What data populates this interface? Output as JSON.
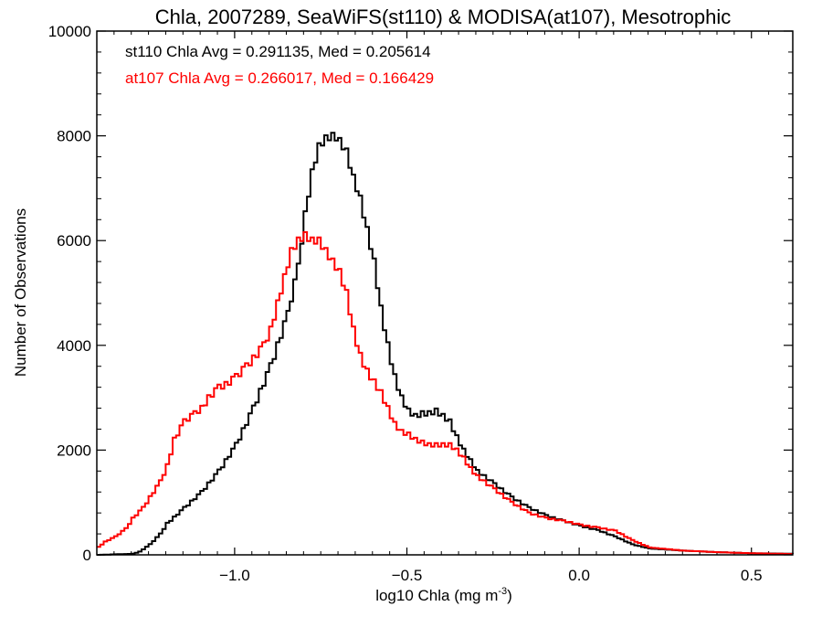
{
  "chart_data": {
    "type": "line",
    "title": "Chla, 2007289, SeaWiFS(st110) & MODISA(at107), Mesotrophic",
    "xlabel_base": "log10 Chla (mg m",
    "xlabel_sup": "-3",
    "xlabel_tail": ")",
    "ylabel": "Number of Observations",
    "xlim": [
      -1.4,
      0.62
    ],
    "ylim": [
      0,
      10000
    ],
    "x_ticks": [
      -1.0,
      -0.5,
      0.0,
      0.5
    ],
    "x_tick_labels": [
      "−1.0",
      "−0.5",
      "0.0",
      "0.5"
    ],
    "y_ticks": [
      0,
      2000,
      4000,
      6000,
      8000,
      10000
    ],
    "y_tick_labels": [
      "0",
      "2000",
      "4000",
      "6000",
      "8000",
      "10000"
    ],
    "grid": false,
    "annotations": [
      {
        "text": "st110 Chla Avg = 0.291135, Med = 0.205614",
        "color": "#000000"
      },
      {
        "text": "at107 Chla Avg = 0.266017, Med = 0.166429",
        "color": "#ff0000"
      }
    ],
    "series": [
      {
        "color": "#000000",
        "style": "step",
        "x": [
          -1.4,
          -1.3,
          -1.28,
          -1.25,
          -1.22,
          -1.2,
          -1.15,
          -1.1,
          -1.05,
          -1.0,
          -0.95,
          -0.9,
          -0.85,
          -0.82,
          -0.8,
          -0.78,
          -0.76,
          -0.74,
          -0.72,
          -0.71,
          -0.7,
          -0.68,
          -0.66,
          -0.64,
          -0.62,
          -0.6,
          -0.58,
          -0.56,
          -0.54,
          -0.52,
          -0.5,
          -0.48,
          -0.46,
          -0.44,
          -0.42,
          -0.4,
          -0.38,
          -0.36,
          -0.34,
          -0.32,
          -0.3,
          -0.25,
          -0.2,
          -0.15,
          -0.1,
          -0.05,
          0.0,
          0.05,
          0.1,
          0.15,
          0.2,
          0.3,
          0.4,
          0.5,
          0.62
        ],
        "y": [
          0,
          20,
          60,
          200,
          400,
          600,
          900,
          1200,
          1600,
          2100,
          2800,
          3600,
          4600,
          5500,
          6500,
          7300,
          7800,
          7950,
          8000,
          7850,
          7900,
          7700,
          7200,
          6800,
          6200,
          5600,
          4700,
          4000,
          3400,
          3000,
          2750,
          2650,
          2700,
          2700,
          2750,
          2650,
          2550,
          2250,
          2000,
          1800,
          1600,
          1350,
          1100,
          900,
          750,
          650,
          550,
          470,
          350,
          200,
          120,
          80,
          50,
          30,
          20
        ]
      },
      {
        "color": "#ff0000",
        "style": "step",
        "x": [
          -1.4,
          -1.38,
          -1.35,
          -1.32,
          -1.3,
          -1.27,
          -1.25,
          -1.22,
          -1.2,
          -1.18,
          -1.15,
          -1.12,
          -1.1,
          -1.08,
          -1.05,
          -1.03,
          -1.0,
          -0.97,
          -0.95,
          -0.92,
          -0.9,
          -0.88,
          -0.86,
          -0.84,
          -0.82,
          -0.8,
          -0.78,
          -0.76,
          -0.74,
          -0.72,
          -0.7,
          -0.68,
          -0.66,
          -0.64,
          -0.62,
          -0.6,
          -0.58,
          -0.56,
          -0.54,
          -0.52,
          -0.5,
          -0.48,
          -0.46,
          -0.44,
          -0.42,
          -0.4,
          -0.38,
          -0.36,
          -0.34,
          -0.32,
          -0.3,
          -0.25,
          -0.2,
          -0.15,
          -0.1,
          -0.05,
          0.0,
          0.05,
          0.1,
          0.15,
          0.2,
          0.3,
          0.4,
          0.5,
          0.62
        ],
        "y": [
          150,
          250,
          350,
          500,
          700,
          900,
          1100,
          1400,
          1700,
          2200,
          2550,
          2700,
          2800,
          3000,
          3200,
          3250,
          3400,
          3600,
          3750,
          4000,
          4300,
          4800,
          5300,
          5800,
          6000,
          6100,
          6000,
          6000,
          5800,
          5600,
          5400,
          5000,
          4300,
          3800,
          3500,
          3300,
          3100,
          2800,
          2500,
          2350,
          2300,
          2200,
          2150,
          2100,
          2100,
          2100,
          2100,
          2000,
          1850,
          1650,
          1500,
          1250,
          1000,
          800,
          700,
          650,
          570,
          520,
          460,
          280,
          140,
          80,
          50,
          30,
          15
        ]
      }
    ]
  }
}
